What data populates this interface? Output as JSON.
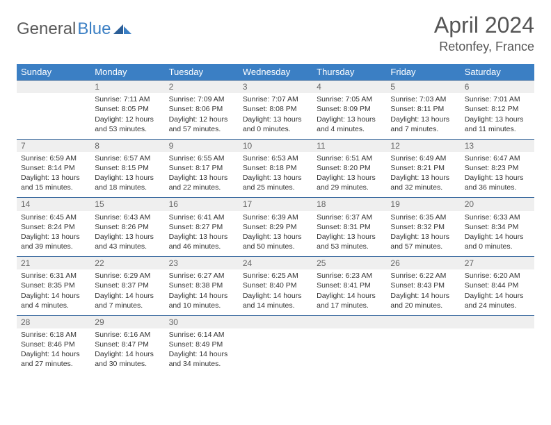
{
  "brand": {
    "general": "General",
    "blue": "Blue"
  },
  "title": "April 2024",
  "location": "Retonfey, France",
  "colors": {
    "header_bg": "#3b7fc4",
    "header_text": "#ffffff",
    "daynum_bg": "#efefef",
    "rule": "#2b5e97",
    "text": "#333333",
    "muted": "#666666"
  },
  "daynames": [
    "Sunday",
    "Monday",
    "Tuesday",
    "Wednesday",
    "Thursday",
    "Friday",
    "Saturday"
  ],
  "weeks": [
    {
      "nums": [
        "",
        "1",
        "2",
        "3",
        "4",
        "5",
        "6"
      ],
      "cells": [
        null,
        {
          "sr": "Sunrise: 7:11 AM",
          "ss": "Sunset: 8:05 PM",
          "d1": "Daylight: 12 hours",
          "d2": "and 53 minutes."
        },
        {
          "sr": "Sunrise: 7:09 AM",
          "ss": "Sunset: 8:06 PM",
          "d1": "Daylight: 12 hours",
          "d2": "and 57 minutes."
        },
        {
          "sr": "Sunrise: 7:07 AM",
          "ss": "Sunset: 8:08 PM",
          "d1": "Daylight: 13 hours",
          "d2": "and 0 minutes."
        },
        {
          "sr": "Sunrise: 7:05 AM",
          "ss": "Sunset: 8:09 PM",
          "d1": "Daylight: 13 hours",
          "d2": "and 4 minutes."
        },
        {
          "sr": "Sunrise: 7:03 AM",
          "ss": "Sunset: 8:11 PM",
          "d1": "Daylight: 13 hours",
          "d2": "and 7 minutes."
        },
        {
          "sr": "Sunrise: 7:01 AM",
          "ss": "Sunset: 8:12 PM",
          "d1": "Daylight: 13 hours",
          "d2": "and 11 minutes."
        }
      ]
    },
    {
      "nums": [
        "7",
        "8",
        "9",
        "10",
        "11",
        "12",
        "13"
      ],
      "cells": [
        {
          "sr": "Sunrise: 6:59 AM",
          "ss": "Sunset: 8:14 PM",
          "d1": "Daylight: 13 hours",
          "d2": "and 15 minutes."
        },
        {
          "sr": "Sunrise: 6:57 AM",
          "ss": "Sunset: 8:15 PM",
          "d1": "Daylight: 13 hours",
          "d2": "and 18 minutes."
        },
        {
          "sr": "Sunrise: 6:55 AM",
          "ss": "Sunset: 8:17 PM",
          "d1": "Daylight: 13 hours",
          "d2": "and 22 minutes."
        },
        {
          "sr": "Sunrise: 6:53 AM",
          "ss": "Sunset: 8:18 PM",
          "d1": "Daylight: 13 hours",
          "d2": "and 25 minutes."
        },
        {
          "sr": "Sunrise: 6:51 AM",
          "ss": "Sunset: 8:20 PM",
          "d1": "Daylight: 13 hours",
          "d2": "and 29 minutes."
        },
        {
          "sr": "Sunrise: 6:49 AM",
          "ss": "Sunset: 8:21 PM",
          "d1": "Daylight: 13 hours",
          "d2": "and 32 minutes."
        },
        {
          "sr": "Sunrise: 6:47 AM",
          "ss": "Sunset: 8:23 PM",
          "d1": "Daylight: 13 hours",
          "d2": "and 36 minutes."
        }
      ]
    },
    {
      "nums": [
        "14",
        "15",
        "16",
        "17",
        "18",
        "19",
        "20"
      ],
      "cells": [
        {
          "sr": "Sunrise: 6:45 AM",
          "ss": "Sunset: 8:24 PM",
          "d1": "Daylight: 13 hours",
          "d2": "and 39 minutes."
        },
        {
          "sr": "Sunrise: 6:43 AM",
          "ss": "Sunset: 8:26 PM",
          "d1": "Daylight: 13 hours",
          "d2": "and 43 minutes."
        },
        {
          "sr": "Sunrise: 6:41 AM",
          "ss": "Sunset: 8:27 PM",
          "d1": "Daylight: 13 hours",
          "d2": "and 46 minutes."
        },
        {
          "sr": "Sunrise: 6:39 AM",
          "ss": "Sunset: 8:29 PM",
          "d1": "Daylight: 13 hours",
          "d2": "and 50 minutes."
        },
        {
          "sr": "Sunrise: 6:37 AM",
          "ss": "Sunset: 8:31 PM",
          "d1": "Daylight: 13 hours",
          "d2": "and 53 minutes."
        },
        {
          "sr": "Sunrise: 6:35 AM",
          "ss": "Sunset: 8:32 PM",
          "d1": "Daylight: 13 hours",
          "d2": "and 57 minutes."
        },
        {
          "sr": "Sunrise: 6:33 AM",
          "ss": "Sunset: 8:34 PM",
          "d1": "Daylight: 14 hours",
          "d2": "and 0 minutes."
        }
      ]
    },
    {
      "nums": [
        "21",
        "22",
        "23",
        "24",
        "25",
        "26",
        "27"
      ],
      "cells": [
        {
          "sr": "Sunrise: 6:31 AM",
          "ss": "Sunset: 8:35 PM",
          "d1": "Daylight: 14 hours",
          "d2": "and 4 minutes."
        },
        {
          "sr": "Sunrise: 6:29 AM",
          "ss": "Sunset: 8:37 PM",
          "d1": "Daylight: 14 hours",
          "d2": "and 7 minutes."
        },
        {
          "sr": "Sunrise: 6:27 AM",
          "ss": "Sunset: 8:38 PM",
          "d1": "Daylight: 14 hours",
          "d2": "and 10 minutes."
        },
        {
          "sr": "Sunrise: 6:25 AM",
          "ss": "Sunset: 8:40 PM",
          "d1": "Daylight: 14 hours",
          "d2": "and 14 minutes."
        },
        {
          "sr": "Sunrise: 6:23 AM",
          "ss": "Sunset: 8:41 PM",
          "d1": "Daylight: 14 hours",
          "d2": "and 17 minutes."
        },
        {
          "sr": "Sunrise: 6:22 AM",
          "ss": "Sunset: 8:43 PM",
          "d1": "Daylight: 14 hours",
          "d2": "and 20 minutes."
        },
        {
          "sr": "Sunrise: 6:20 AM",
          "ss": "Sunset: 8:44 PM",
          "d1": "Daylight: 14 hours",
          "d2": "and 24 minutes."
        }
      ]
    },
    {
      "nums": [
        "28",
        "29",
        "30",
        "",
        "",
        "",
        ""
      ],
      "cells": [
        {
          "sr": "Sunrise: 6:18 AM",
          "ss": "Sunset: 8:46 PM",
          "d1": "Daylight: 14 hours",
          "d2": "and 27 minutes."
        },
        {
          "sr": "Sunrise: 6:16 AM",
          "ss": "Sunset: 8:47 PM",
          "d1": "Daylight: 14 hours",
          "d2": "and 30 minutes."
        },
        {
          "sr": "Sunrise: 6:14 AM",
          "ss": "Sunset: 8:49 PM",
          "d1": "Daylight: 14 hours",
          "d2": "and 34 minutes."
        },
        null,
        null,
        null,
        null
      ]
    }
  ]
}
